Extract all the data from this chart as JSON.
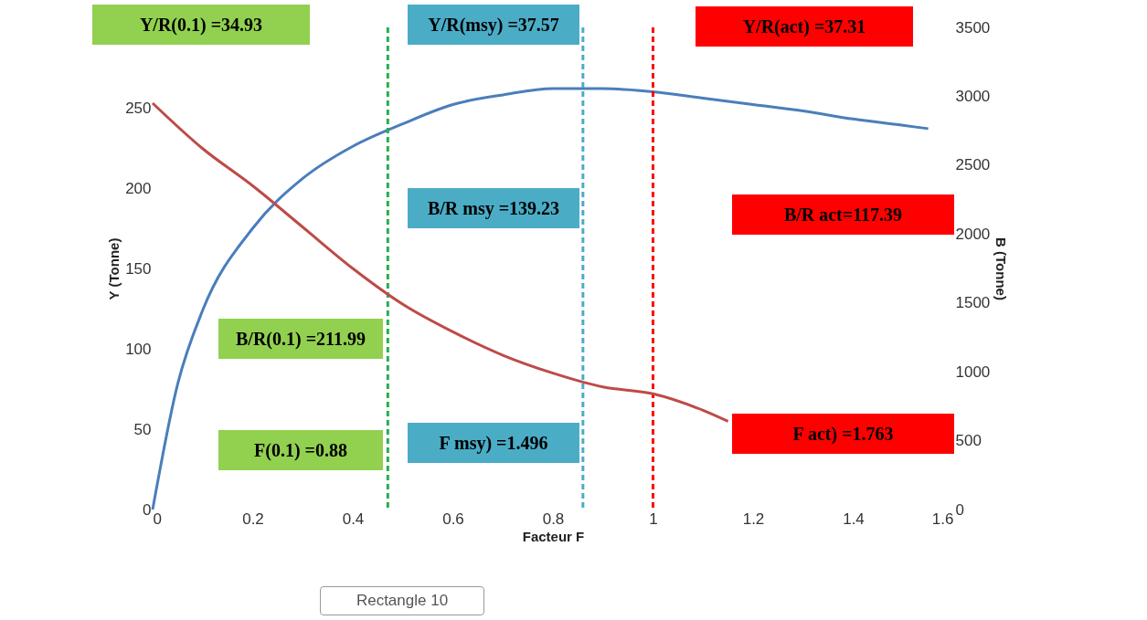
{
  "chart_data": {
    "type": "line",
    "xlabel": "Facteur F",
    "ylabel": "Y (Tonne)",
    "y2label": "B (Tonne)",
    "x": [
      0,
      0.05,
      0.1,
      0.2,
      0.3,
      0.4,
      0.5,
      0.6,
      0.7,
      0.8,
      0.9,
      1.0,
      1.1,
      1.2,
      1.3,
      1.4,
      1.5,
      1.55
    ],
    "series": [
      {
        "color": "#4a7ebb",
        "values": [
          0,
          78,
          124,
          175,
          206,
          226,
          240,
          252,
          258,
          262,
          262,
          260,
          256,
          252,
          248,
          243,
          239,
          237
        ]
      },
      {
        "color": "#be4b48",
        "axis": "y2",
        "x": [
          0,
          0.1,
          0.2,
          0.3,
          0.4,
          0.5,
          0.6,
          0.7,
          0.8,
          0.9,
          1.0,
          1.1,
          1.15
        ],
        "values": [
          2950,
          2620,
          2350,
          2050,
          1750,
          1490,
          1290,
          1120,
          990,
          890,
          840,
          720,
          640
        ]
      }
    ],
    "xlim": [
      0,
      1.6
    ],
    "xticks": [
      0,
      0.2,
      0.4,
      0.6,
      0.8,
      1,
      1.2,
      1.4,
      1.6
    ],
    "ylim": [
      0,
      300
    ],
    "yticks": [
      0,
      50,
      100,
      150,
      200,
      250
    ],
    "y2lim": [
      0,
      3500
    ],
    "y2ticks": [
      0,
      500,
      1000,
      1500,
      2000,
      2500,
      3000,
      3500
    ],
    "ref_lines": [
      {
        "axis": "x",
        "value": 0.47,
        "color": "#22b14c",
        "line_style": "dashed"
      },
      {
        "axis": "x",
        "value": 0.86,
        "color": "#4bacc6",
        "line_style": "dashed"
      },
      {
        "axis": "x",
        "value": 1.0,
        "color": "#ff0000",
        "line_style": "dashed"
      }
    ],
    "annotations": [
      "Y/R(0.1)  =34.93",
      "Y/R(msy)  =37.57",
      "Y/R(act)  =37.31",
      "B/R(0.1) =211.99",
      "B/R msy  =139.23",
      "B/R act=117.39",
      "F(0.1) =0.88",
      "F msy) =1.496",
      "F act) =1.763",
      "Rectangle 10"
    ],
    "grid": false
  }
}
